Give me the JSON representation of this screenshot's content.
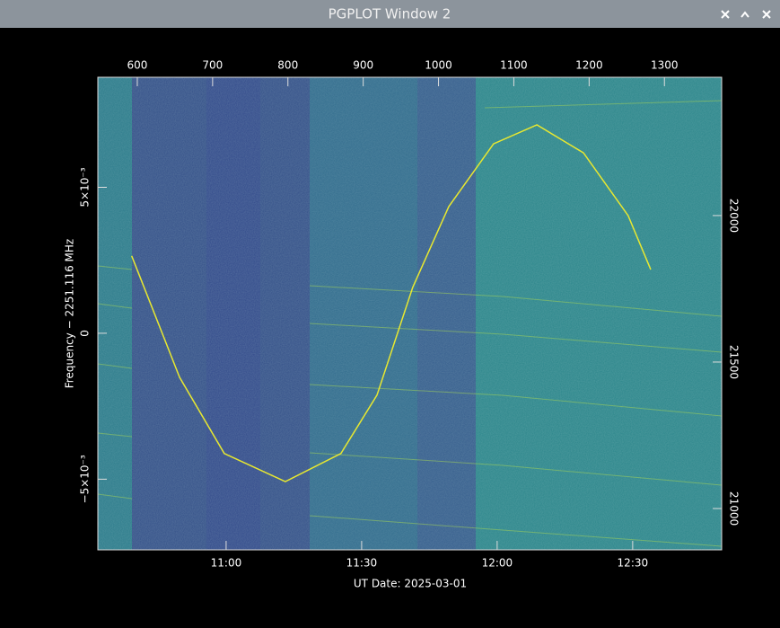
{
  "window": {
    "title": "PGPLOT Window 2"
  },
  "chart_data": {
    "type": "line",
    "x_label": "UT Date: 2025-03-01",
    "y_label": "Frequency − 2251.116 MHz",
    "xlim": [
      631.6,
      769.7
    ],
    "xticks": [
      {
        "value": 660,
        "label": "11:00"
      },
      {
        "value": 690,
        "label": "11:30"
      },
      {
        "value": 720,
        "label": "12:00"
      },
      {
        "value": 750,
        "label": "12:30"
      }
    ],
    "x2lim": [
      547.6,
      1376
    ],
    "x2ticks": [
      600,
      700,
      800,
      900,
      1000,
      1100,
      1200,
      1300
    ],
    "ylim": [
      -0.00742,
      0.00877
    ],
    "yticks": [
      {
        "value": -0.005,
        "label": "−5×10⁻³"
      },
      0,
      {
        "value": 0.005,
        "label": "5×10⁻³"
      }
    ],
    "y2lim": [
      20859,
      22472
    ],
    "y2ticks": [
      21000,
      21500,
      22000
    ],
    "series": [
      {
        "color": "#e8e830",
        "x": [
          639.1,
          649.7,
          659.6,
          673.1,
          685.4,
          693.4,
          701.3,
          709.3,
          719.2,
          728.8,
          739.1,
          749.0,
          754.0
        ],
        "values": [
          0.00265,
          -0.00151,
          -0.00412,
          -0.00508,
          -0.00412,
          -0.00212,
          0.00157,
          0.00434,
          0.00649,
          0.00714,
          0.00618,
          0.00403,
          0.00218
        ]
      }
    ]
  }
}
